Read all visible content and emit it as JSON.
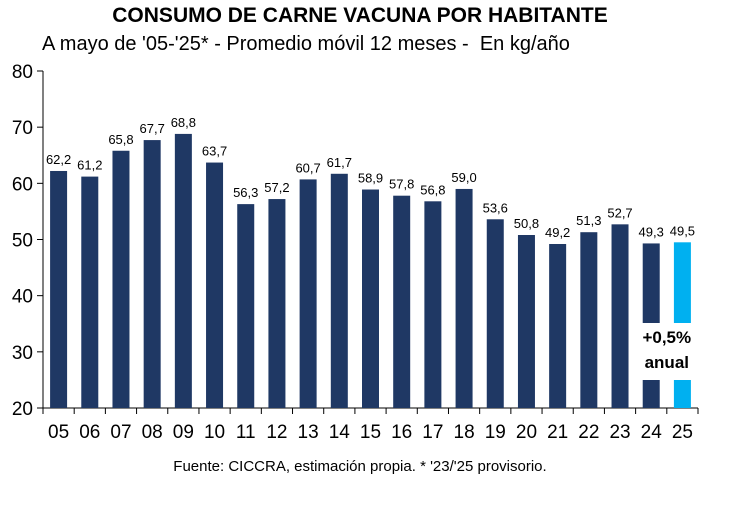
{
  "chart_data": {
    "type": "bar",
    "title": "CONSUMO DE CARNE VACUNA POR HABITANTE",
    "subtitle": "A mayo de '05-'25* - Promedio móvil 12 meses -  En kg/año",
    "categories": [
      "05",
      "06",
      "07",
      "08",
      "09",
      "10",
      "11",
      "12",
      "13",
      "14",
      "15",
      "16",
      "17",
      "18",
      "19",
      "20",
      "21",
      "22",
      "23",
      "24",
      "25"
    ],
    "values": [
      62.2,
      61.2,
      65.8,
      67.7,
      68.8,
      63.7,
      56.3,
      57.2,
      60.7,
      61.7,
      58.9,
      57.8,
      56.8,
      59.0,
      53.6,
      50.8,
      49.2,
      51.3,
      52.7,
      49.3,
      49.5
    ],
    "data_labels": [
      "62,2",
      "61,2",
      "65,8",
      "67,7",
      "68,8",
      "63,7",
      "56,3",
      "57,2",
      "60,7",
      "61,7",
      "58,9",
      "57,8",
      "56,8",
      "59,0",
      "53,6",
      "50,8",
      "49,2",
      "51,3",
      "52,7",
      "49,3",
      "49,5"
    ],
    "ylim": [
      20,
      80
    ],
    "yticks": [
      20,
      30,
      40,
      50,
      60,
      70,
      80
    ],
    "xlabel": "",
    "ylabel": "",
    "grid": false,
    "colors": {
      "bars": "#1f3864",
      "highlight": "#00b0f0"
    },
    "highlight_index": 20,
    "annotation": [
      "+0,5%",
      "anual"
    ]
  },
  "footer": "Fuente: CICCRA, estimación propia. * '23/'25 provisorio."
}
